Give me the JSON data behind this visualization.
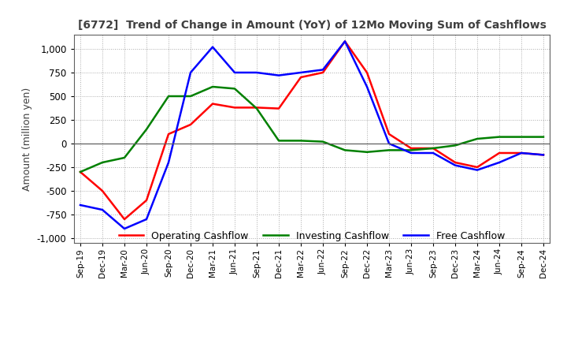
{
  "title": "[6772]  Trend of Change in Amount (YoY) of 12Mo Moving Sum of Cashflows",
  "ylabel": "Amount (million yen)",
  "x_labels": [
    "Sep-19",
    "Dec-19",
    "Mar-20",
    "Jun-20",
    "Sep-20",
    "Dec-20",
    "Mar-21",
    "Jun-21",
    "Sep-21",
    "Dec-21",
    "Mar-22",
    "Jun-22",
    "Sep-22",
    "Dec-22",
    "Mar-23",
    "Jun-23",
    "Sep-23",
    "Dec-23",
    "Mar-24",
    "Jun-24",
    "Sep-24",
    "Dec-24"
  ],
  "operating": [
    -300,
    -500,
    -800,
    -600,
    100,
    200,
    420,
    380,
    380,
    370,
    700,
    750,
    1080,
    750,
    100,
    -50,
    -50,
    -200,
    -250,
    -100,
    -100,
    -120
  ],
  "investing": [
    -300,
    -200,
    -150,
    150,
    500,
    500,
    600,
    580,
    370,
    30,
    30,
    20,
    -70,
    -90,
    -70,
    -70,
    -50,
    -20,
    50,
    70,
    70,
    70
  ],
  "free": [
    -650,
    -700,
    -900,
    -800,
    -200,
    750,
    1020,
    750,
    750,
    720,
    750,
    780,
    1080,
    600,
    0,
    -100,
    -100,
    -230,
    -280,
    -200,
    -100,
    -120
  ],
  "ylim": [
    -1050,
    1150
  ],
  "yticks": [
    -1000,
    -750,
    -500,
    -250,
    0,
    250,
    500,
    750,
    1000
  ],
  "operating_color": "#ff0000",
  "investing_color": "#008000",
  "free_color": "#0000ff",
  "grid_color": "#aaaaaa",
  "bg_color": "#ffffff",
  "title_color": "#404040"
}
